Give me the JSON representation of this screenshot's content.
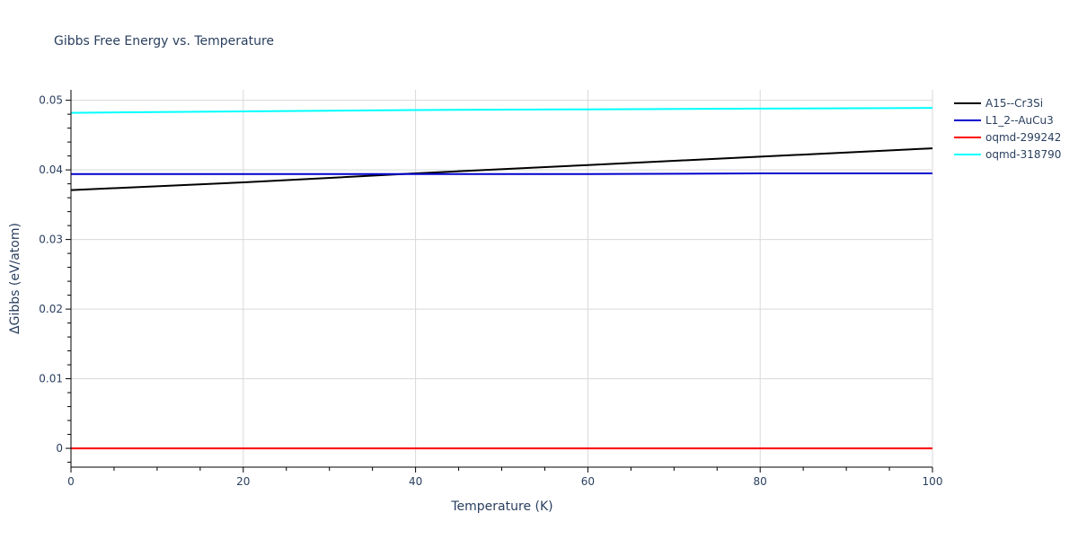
{
  "chart_data": {
    "type": "line",
    "title": "Gibbs Free Energy vs. Temperature",
    "xlabel": "Temperature (K)",
    "ylabel": "ΔGibbs (eV/atom)",
    "xlim": [
      0,
      100
    ],
    "ylim": [
      -0.0027,
      0.0515
    ],
    "x_ticks": [
      0,
      20,
      40,
      60,
      80,
      100
    ],
    "x_tick_labels": [
      "0",
      "20",
      "40",
      "60",
      "80",
      "100"
    ],
    "y_ticks": [
      0,
      0.01,
      0.02,
      0.03,
      0.04,
      0.05
    ],
    "y_tick_labels": [
      "0",
      "0.01",
      "0.02",
      "0.03",
      "0.04",
      "0.05"
    ],
    "grid": true,
    "legend_position": "top-right outside",
    "series": [
      {
        "name": "A15--Cr3Si",
        "color": "#000000",
        "x": [
          0,
          20,
          40,
          60,
          80,
          100
        ],
        "y": [
          0.0371,
          0.0382,
          0.0395,
          0.0407,
          0.0419,
          0.0431
        ]
      },
      {
        "name": "L1_2--AuCu3",
        "color": "#0000cc",
        "x": [
          0,
          20,
          40,
          60,
          80,
          100
        ],
        "y": [
          0.0394,
          0.0394,
          0.0394,
          0.0394,
          0.0395,
          0.0395
        ]
      },
      {
        "name": "oqmd-299242",
        "color": "#ff0000",
        "x": [
          0,
          20,
          40,
          60,
          80,
          100
        ],
        "y": [
          0,
          0,
          0,
          0,
          0,
          0
        ]
      },
      {
        "name": "oqmd-318790",
        "color": "#00ffff",
        "x": [
          0,
          20,
          40,
          60,
          80,
          100
        ],
        "y": [
          0.0482,
          0.0484,
          0.0486,
          0.0487,
          0.0488,
          0.0489
        ]
      }
    ]
  }
}
